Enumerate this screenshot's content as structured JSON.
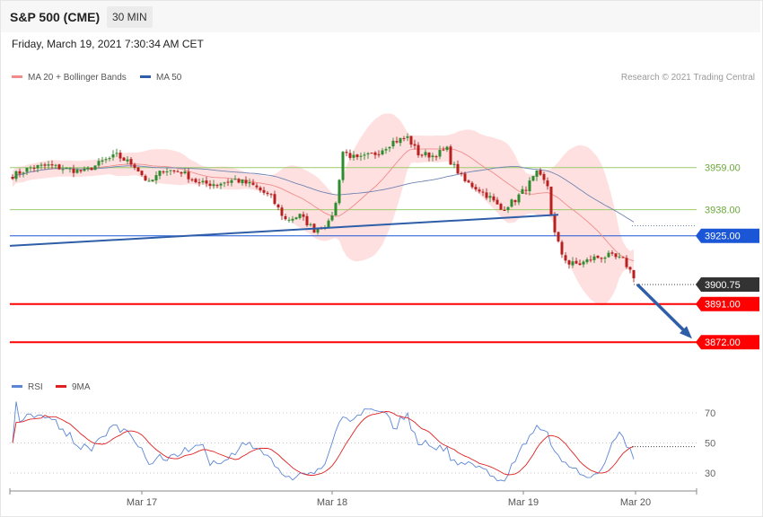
{
  "header": {
    "symbol": "S&P 500 (CME)",
    "interval": "30 MIN",
    "datetime": "Friday, March 19, 2021 7:30:34 AM CET",
    "copyright": "Research © 2021 Trading Central"
  },
  "legend": {
    "ma20": "MA 20 + Bollinger Bands",
    "ma50": "MA 50",
    "rsi": "RSI",
    "ma9": "9MA"
  },
  "colors": {
    "band": "#ffdada",
    "ma20": "#f08c8c",
    "ma50": "#6f84b3",
    "up": "#2e8b2e",
    "down": "#b82020",
    "support": "#ff0000",
    "pivot": "#1a56d6",
    "resistance": "#9ccc6a",
    "trendline": "#2f5ea8",
    "last": "#333333",
    "rsi": "#5b86d6",
    "rsi_ma": "#e02020"
  },
  "chart_data": {
    "type": "candlestick",
    "x_labels": [
      "Mar 17",
      "Mar 18",
      "Mar 19",
      "Mar 20"
    ],
    "y_range": [
      3858,
      3977
    ],
    "levels": [
      {
        "value": 3959.0,
        "label": "3959.00",
        "kind": "resistance"
      },
      {
        "value": 3938.0,
        "label": "3938.00",
        "kind": "resistance"
      },
      {
        "value": 3925.0,
        "label": "3925.00",
        "kind": "pivot"
      },
      {
        "value": 3900.75,
        "label": "3900.75",
        "kind": "last"
      },
      {
        "value": 3891.0,
        "label": "3891.00",
        "kind": "support"
      },
      {
        "value": 3872.0,
        "label": "3872.00",
        "kind": "support"
      }
    ],
    "trendline": {
      "from": [
        0,
        3920
      ],
      "to": [
        152,
        3935.5
      ]
    },
    "forecast_arrow": {
      "from": [
        1.0,
        3900.75
      ],
      "to": [
        1.0,
        3872
      ]
    },
    "anchors": [
      [
        0,
        3955
      ],
      [
        5,
        3959
      ],
      [
        10,
        3960
      ],
      [
        16,
        3958
      ],
      [
        20,
        3957
      ],
      [
        25,
        3962
      ],
      [
        29,
        3965
      ],
      [
        34,
        3960
      ],
      [
        38,
        3951
      ],
      [
        42,
        3958
      ],
      [
        47,
        3957
      ],
      [
        52,
        3951
      ],
      [
        57,
        3951
      ],
      [
        62,
        3953
      ],
      [
        67,
        3950
      ],
      [
        72,
        3944
      ],
      [
        76,
        3933
      ],
      [
        80,
        3935
      ],
      [
        84,
        3928
      ],
      [
        88,
        3931
      ],
      [
        90,
        3941
      ],
      [
        92,
        3967
      ],
      [
        96,
        3963
      ],
      [
        101,
        3966
      ],
      [
        106,
        3972
      ],
      [
        110,
        3974
      ],
      [
        113,
        3966
      ],
      [
        117,
        3965
      ],
      [
        121,
        3968
      ],
      [
        122,
        3962
      ],
      [
        126,
        3952
      ],
      [
        130,
        3948
      ],
      [
        133,
        3944
      ],
      [
        136,
        3938
      ],
      [
        140,
        3943
      ],
      [
        143,
        3949
      ],
      [
        146,
        3956
      ],
      [
        149,
        3950
      ],
      [
        150,
        3936
      ],
      [
        151,
        3926
      ],
      [
        153,
        3916
      ],
      [
        155,
        3911
      ],
      [
        158,
        3911
      ],
      [
        162,
        3914
      ],
      [
        166,
        3915
      ],
      [
        170,
        3913
      ],
      [
        173,
        3905
      ]
    ],
    "rsi": {
      "levels": [
        70,
        50,
        30
      ],
      "range": [
        18,
        82
      ]
    }
  }
}
